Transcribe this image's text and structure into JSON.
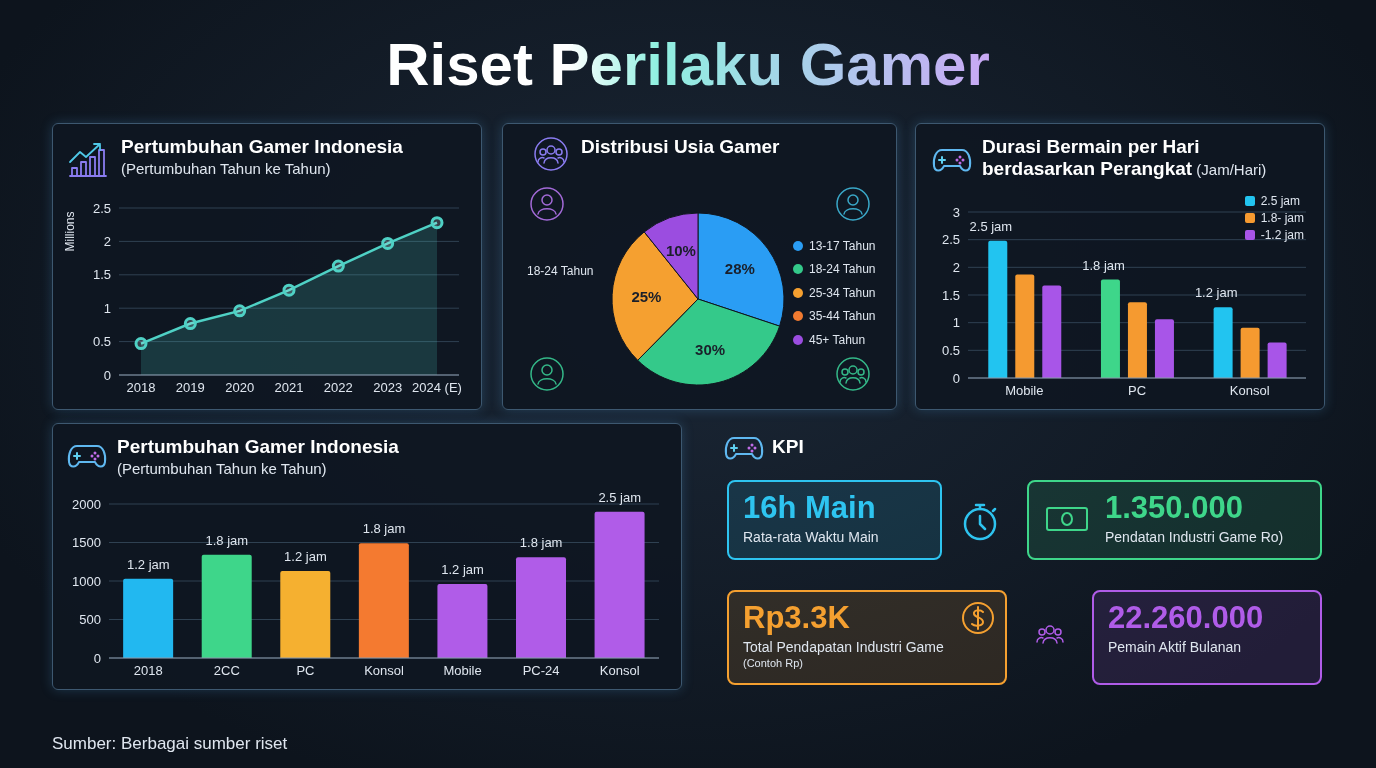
{
  "chart_data": [
    {
      "type": "other",
      "title": "Riset Perilaku Gamer",
      "annotations": [
        "Sumber: Berbagai sumber riset"
      ]
    },
    {
      "type": "area",
      "title": "Pertumbuhan Gamer Indonesia",
      "subtitle": "(Pertumbuhan Tahun ke Tahun)",
      "ylabel": "Millions",
      "categories": [
        "2018",
        "2019",
        "2020",
        "2021",
        "2022",
        "2023",
        "2024 (E)"
      ],
      "values": [
        0.47,
        0.77,
        0.96,
        1.27,
        1.63,
        1.97,
        2.28
      ],
      "color": "#4fd1c5",
      "ylim": [
        0,
        2.5
      ],
      "yticks": [
        0,
        0.5,
        1,
        1.5,
        2,
        2.5
      ],
      "grid": "y",
      "marker": "circle"
    },
    {
      "type": "pie",
      "title": "Distribusi Usia Gamer",
      "categories": [
        "13-17 Tahun",
        "18-24 Tahun",
        "25-34 Tahun",
        "35-44 Tahun",
        "45+ Tahun"
      ],
      "values": [
        28,
        30,
        25,
        null,
        10
      ],
      "value_labels": [
        "28%",
        "30%",
        "25%",
        null,
        "10%"
      ],
      "colors": [
        "#2a9df4",
        "#34c98a",
        "#f5a030",
        "#f07a30",
        "#9b4de0"
      ],
      "legend": "right",
      "annotations": [
        "18-24 Tahun"
      ]
    },
    {
      "type": "bar",
      "title": "Durasi Bermain per Hari berdasarkan Perangkat",
      "subtitle": "(Jam/Hari)",
      "categories": [
        "Mobile",
        "PC",
        "Konsol"
      ],
      "series": [
        {
          "name": "2.5 jam",
          "color": "#22c4f0",
          "colors": [
            "#22c4f0",
            "#3ed68a",
            "#22c4f0"
          ],
          "values": [
            2.48,
            1.78,
            1.28
          ]
        },
        {
          "name": "1.8- jam",
          "color": "#f59a30",
          "values": [
            1.87,
            1.37,
            0.91
          ]
        },
        {
          "name": "-1.2 jam",
          "color": "#a855e8",
          "values": [
            1.67,
            1.06,
            0.64
          ]
        }
      ],
      "ylim": [
        0,
        3
      ],
      "yticks": [
        0,
        0.5,
        1,
        1.5,
        2,
        2.5,
        3
      ],
      "grid": "y",
      "legend": "top right",
      "annotations": [
        "2.5 jam",
        "1.8 jam",
        "1.2 jam"
      ]
    },
    {
      "type": "bar",
      "title": "Pertumbuhan Gamer Indonesia",
      "subtitle": "(Pertumbuhan Tahun ke Tahun)",
      "categories": [
        "2018",
        "2CC",
        "PC",
        "Konsol",
        "Mobile",
        "PC-24",
        "Konsol"
      ],
      "values": [
        1030,
        1340,
        1130,
        1490,
        960,
        1310,
        1900
      ],
      "colors": [
        "#22b8f0",
        "#3ed68a",
        "#f5b030",
        "#f47a30",
        "#b05ce8",
        "#b05ce8",
        "#b05ce8"
      ],
      "annotations": [
        "1.2 jam",
        "1.8 jam",
        "1.2 jam",
        "1.8 jam",
        "1.2 jam",
        "1.8 jam",
        "2.5 jam"
      ],
      "ylim": [
        0,
        2000
      ],
      "yticks": [
        0,
        500,
        1000,
        1500,
        2000
      ],
      "grid": "y"
    },
    {
      "type": "other",
      "title": "KPI",
      "annotations": [
        "16h Main",
        "Rata-rata Waktu Main",
        "1.350.000",
        "Pendatan Industri Game Ro)",
        "Rp3.3K",
        "Total Pendapatan Industri Game",
        "(Contoh Rp)",
        "22.260.000",
        "Pemain Aktif Bulanan"
      ],
      "colors": [
        "#2ec4f0",
        "#3ed68a",
        "#f5a030",
        "#b05ce8"
      ]
    }
  ]
}
